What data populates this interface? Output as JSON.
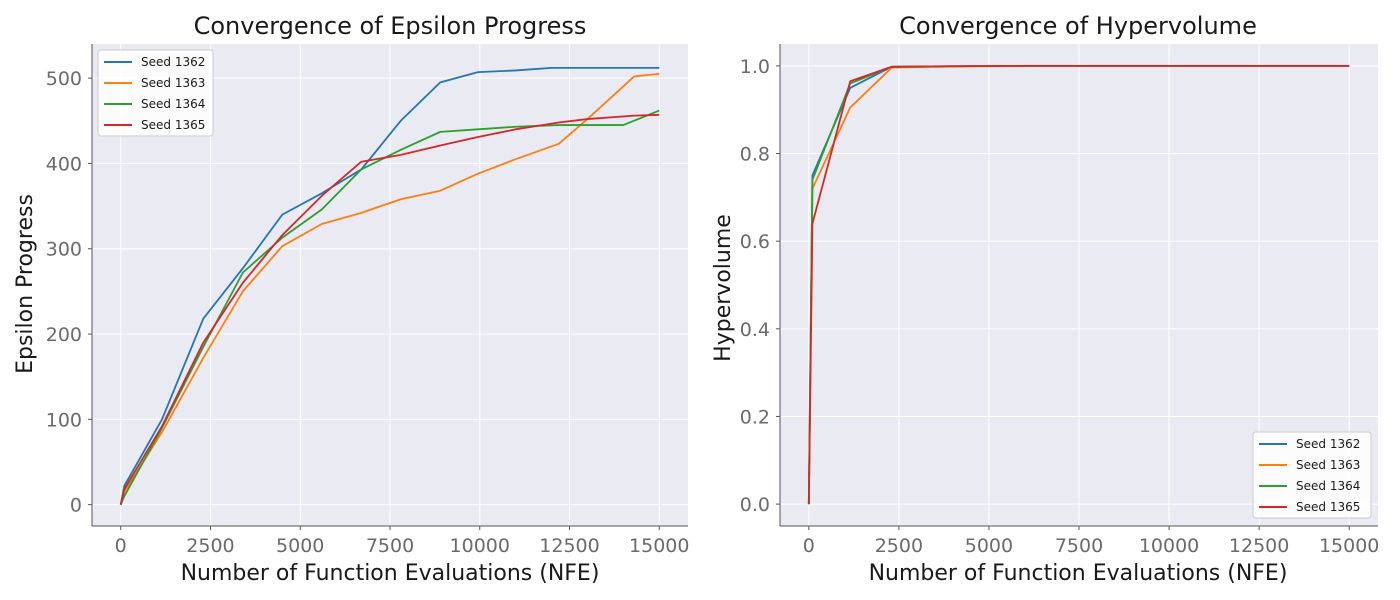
{
  "colors": {
    "seed_1362": "#1f77b4",
    "seed_1363": "#ff7f0e",
    "seed_1364": "#2ca02c",
    "seed_1365": "#d62728"
  },
  "chart_data": [
    {
      "type": "line",
      "title": "Convergence of Epsilon Progress",
      "xlabel": "Number of Function Evaluations (NFE)",
      "ylabel": "Epsilon Progress",
      "xlim": [
        -800,
        15800
      ],
      "ylim": [
        -25,
        540
      ],
      "xticks": [
        0,
        2500,
        5000,
        7500,
        10000,
        12500,
        15000
      ],
      "yticks": [
        0,
        100,
        200,
        300,
        400,
        500
      ],
      "grid": true,
      "legend": "top-left",
      "series": [
        {
          "name": "Seed 1362",
          "color_key": "seed_1362",
          "x": [
            0,
            100,
            1150,
            2300,
            3400,
            4500,
            5600,
            6700,
            7800,
            8900,
            9950,
            11000,
            12000,
            13000,
            15000
          ],
          "y": [
            0,
            22,
            100,
            218,
            277,
            340,
            365,
            393,
            450,
            495,
            507,
            509,
            512,
            512,
            512
          ]
        },
        {
          "name": "Seed 1363",
          "color_key": "seed_1363",
          "x": [
            0,
            100,
            1150,
            2300,
            3400,
            4500,
            5600,
            6700,
            7800,
            8900,
            9950,
            11000,
            12200,
            13000,
            14300,
            15000
          ],
          "y": [
            0,
            15,
            85,
            172,
            250,
            303,
            329,
            342,
            358,
            368,
            388,
            405,
            423,
            452,
            502,
            505
          ]
        },
        {
          "name": "Seed 1364",
          "color_key": "seed_1364",
          "x": [
            0,
            100,
            1150,
            2300,
            3400,
            4500,
            5600,
            6700,
            7800,
            8900,
            9950,
            11000,
            12200,
            13000,
            14000,
            15000
          ],
          "y": [
            0,
            10,
            90,
            185,
            272,
            313,
            346,
            393,
            416,
            437,
            440,
            443,
            445,
            445,
            445,
            462
          ]
        },
        {
          "name": "Seed 1365",
          "color_key": "seed_1365",
          "x": [
            0,
            100,
            1150,
            2300,
            3400,
            4500,
            5600,
            6700,
            7800,
            8900,
            9950,
            11000,
            12200,
            13000,
            14300,
            15000
          ],
          "y": [
            0,
            18,
            92,
            190,
            260,
            316,
            362,
            402,
            410,
            421,
            431,
            440,
            448,
            452,
            456,
            457
          ]
        }
      ]
    },
    {
      "type": "line",
      "title": "Convergence of Hypervolume",
      "xlabel": "Number of Function Evaluations (NFE)",
      "ylabel": "Hypervolume",
      "xlim": [
        -800,
        15800
      ],
      "ylim": [
        -0.05,
        1.05
      ],
      "xticks": [
        0,
        2500,
        5000,
        7500,
        10000,
        12500,
        15000
      ],
      "yticks": [
        0.0,
        0.2,
        0.4,
        0.6,
        0.8,
        1.0
      ],
      "grid": true,
      "legend": "bottom-right",
      "series": [
        {
          "name": "Seed 1362",
          "color_key": "seed_1362",
          "x": [
            0,
            100,
            1150,
            2300,
            3400,
            4500,
            5600,
            6700,
            7800,
            10000,
            12500,
            15000
          ],
          "y": [
            0.0,
            0.75,
            0.95,
            0.998,
            0.999,
            0.9995,
            1.0,
            1.0,
            1.0,
            1.0,
            1.0,
            1.0
          ]
        },
        {
          "name": "Seed 1363",
          "color_key": "seed_1363",
          "x": [
            0,
            100,
            1150,
            2300,
            3400,
            4500,
            5600,
            6700,
            7800,
            10000,
            12500,
            15000
          ],
          "y": [
            0.0,
            0.72,
            0.905,
            0.996,
            0.998,
            0.999,
            0.9995,
            1.0,
            1.0,
            1.0,
            1.0,
            1.0
          ]
        },
        {
          "name": "Seed 1364",
          "color_key": "seed_1364",
          "x": [
            0,
            100,
            1150,
            2300,
            3400,
            4500,
            5600,
            6700,
            7800,
            10000,
            12500,
            15000
          ],
          "y": [
            0.0,
            0.74,
            0.96,
            0.998,
            0.999,
            0.9995,
            1.0,
            1.0,
            1.0,
            1.0,
            1.0,
            1.0
          ]
        },
        {
          "name": "Seed 1365",
          "color_key": "seed_1365",
          "x": [
            0,
            100,
            1150,
            2300,
            3400,
            4500,
            5600,
            6700,
            7800,
            10000,
            12500,
            15000
          ],
          "y": [
            0.0,
            0.64,
            0.965,
            0.998,
            0.999,
            0.9995,
            1.0,
            1.0,
            1.0,
            1.0,
            1.0,
            1.0
          ]
        }
      ]
    }
  ]
}
